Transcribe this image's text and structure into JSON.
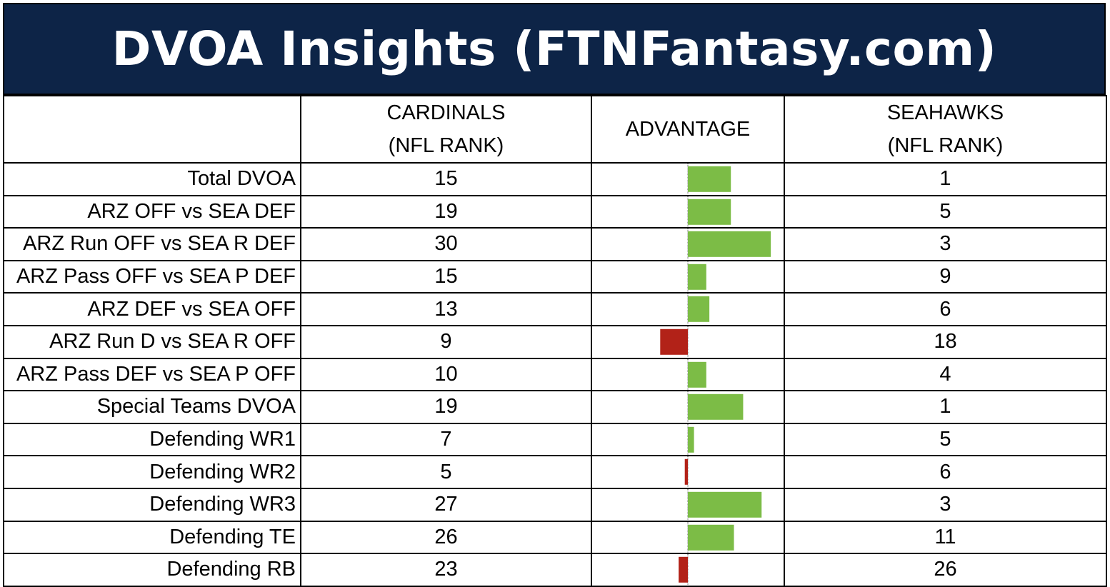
{
  "title": "DVOA Insights (FTNFantasy.com)",
  "headers": {
    "team1_line1": "CARDINALS",
    "team1_line2": "(NFL RANK)",
    "advantage": "ADVANTAGE",
    "team2_line1": "SEAHAWKS",
    "team2_line2": "(NFL RANK)"
  },
  "colors": {
    "header_bg": "#0d2447",
    "positive": "#7cbc46",
    "negative": "#b22218"
  },
  "chart_data": {
    "type": "bar",
    "orientation": "horizontal",
    "categories": [
      "Total DVOA",
      "ARZ OFF vs SEA DEF",
      "ARZ Run OFF vs SEA R DEF",
      "ARZ Pass OFF vs SEA P DEF",
      "ARZ DEF vs SEA OFF",
      "ARZ Run D vs SEA R OFF",
      "ARZ Pass DEF vs SEA P OFF",
      "Special Teams DVOA",
      "Defending WR1",
      "Defending WR2",
      "Defending WR3",
      "Defending TE",
      "Defending RB"
    ],
    "cardinals_rank": [
      "15",
      "19",
      "30",
      "15",
      "13",
      "9",
      "10",
      "19",
      "7",
      "5",
      "27",
      "26",
      "23"
    ],
    "seahawks_rank": [
      "1",
      "5",
      "3",
      "9",
      "6",
      "18",
      "4",
      "1",
      "5",
      "6",
      "3",
      "11",
      "26"
    ],
    "advantage": [
      14,
      14,
      27,
      6,
      7,
      -9,
      6,
      18,
      2,
      -1,
      24,
      15,
      -3
    ],
    "xlim": [
      -30,
      30
    ]
  }
}
